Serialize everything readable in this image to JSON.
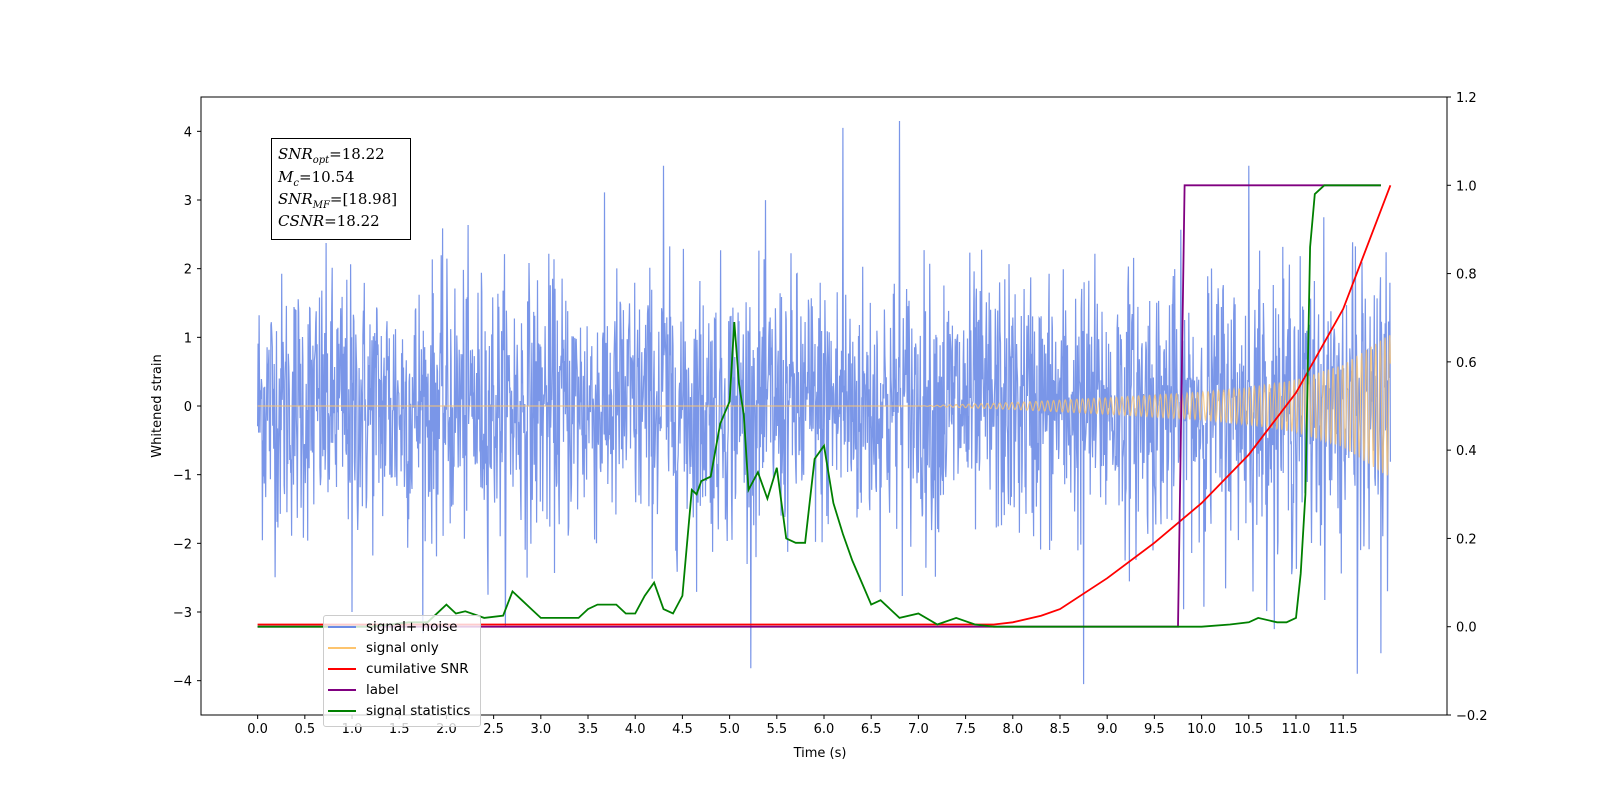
{
  "chart_data": {
    "type": "line",
    "xlabel": "Time (s)",
    "ylabel": "Whitened strain",
    "xlim": [
      -0.6,
      12.6
    ],
    "ylim": [
      -4.5,
      4.5
    ],
    "y2lim": [
      -0.2,
      1.2
    ],
    "x_ticks": [
      0.0,
      0.5,
      1.0,
      1.5,
      2.0,
      2.5,
      3.0,
      3.5,
      4.0,
      4.5,
      5.0,
      5.5,
      6.0,
      6.5,
      7.0,
      7.5,
      8.0,
      8.5,
      9.0,
      9.5,
      10.0,
      10.5,
      11.0,
      11.5
    ],
    "x_tick_labels": [
      "0.0",
      "0.5",
      "1.0",
      "1.5",
      "2.0",
      "2.5",
      "3.0",
      "3.5",
      "4.0",
      "4.5",
      "5.0",
      "5.5",
      "6.0",
      "6.5",
      "7.0",
      "7.5",
      "8.0",
      "8.5",
      "9.0",
      "9.5",
      "10.0",
      "10.5",
      "11.0",
      "11.5"
    ],
    "y_ticks": [
      -4,
      -3,
      -2,
      -1,
      0,
      1,
      2,
      3,
      4
    ],
    "y_tick_labels": [
      "−4",
      "−3",
      "−2",
      "−1",
      "0",
      "1",
      "2",
      "3",
      "4"
    ],
    "y2_ticks": [
      -0.2,
      0.0,
      0.2,
      0.4,
      0.6,
      0.8,
      1.0,
      1.2
    ],
    "y2_tick_labels": [
      "−0.2",
      "0.0",
      "0.2",
      "0.4",
      "0.6",
      "0.8",
      "1.0",
      "1.2"
    ],
    "legend": {
      "location": "lower-left",
      "entries": [
        {
          "label": "signal+ noise",
          "color": "#6b8be6"
        },
        {
          "label": "signal only",
          "color": "#fdc46e"
        },
        {
          "label": "cumilative SNR",
          "color": "#ff0000"
        },
        {
          "label": "label",
          "color": "#800080"
        },
        {
          "label": "signal statistics",
          "color": "#008000"
        }
      ]
    },
    "annotation": {
      "snr_opt": "=18.22",
      "mc": "=10.54",
      "snr_mf": "=[18.98]",
      "csnr": "=18.22"
    },
    "series": [
      {
        "name": "signal+ noise",
        "axis": "left",
        "color": "#6b8be6",
        "style": "dense noisy trace, approx ±1.5 strain band with spikes to ±4",
        "x_range": [
          0.0,
          12.0
        ],
        "notable_peaks": [
          {
            "x": 4.3,
            "y": 3.5
          },
          {
            "x": 6.2,
            "y": 4.05
          },
          {
            "x": 6.8,
            "y": 4.15
          },
          {
            "x": 10.5,
            "y": 3.5
          },
          {
            "x": 8.75,
            "y": -4.05
          },
          {
            "x": 11.65,
            "y": -3.9
          },
          {
            "x": 1.0,
            "y": -3.0
          },
          {
            "x": 11.9,
            "y": -3.6
          }
        ]
      },
      {
        "name": "signal only",
        "axis": "left",
        "color": "#fdc46e",
        "style": "chirp oscillation growing in amplitude",
        "envelope": {
          "x": [
            0.0,
            7.0,
            8.0,
            9.0,
            10.0,
            10.5,
            11.0,
            11.5,
            12.0
          ],
          "amplitude": [
            0.0,
            0.0,
            0.05,
            0.12,
            0.2,
            0.27,
            0.38,
            0.6,
            1.05
          ]
        }
      },
      {
        "name": "cumilative SNR",
        "axis": "right",
        "color": "#ff0000",
        "x": [
          0.0,
          7.5,
          7.8,
          8.0,
          8.3,
          8.5,
          9.0,
          9.5,
          10.0,
          10.5,
          11.0,
          11.5,
          12.0
        ],
        "y": [
          0.005,
          0.005,
          0.005,
          0.01,
          0.025,
          0.04,
          0.11,
          0.19,
          0.28,
          0.39,
          0.53,
          0.72,
          1.0
        ]
      },
      {
        "name": "label",
        "axis": "right",
        "color": "#800080",
        "x": [
          0.0,
          9.75,
          9.82,
          11.9
        ],
        "y": [
          0.0,
          0.0,
          1.0,
          1.0
        ]
      },
      {
        "name": "signal statistics",
        "axis": "right",
        "color": "#008000",
        "x": [
          0.0,
          0.2,
          0.4,
          0.6,
          0.8,
          1.0,
          1.2,
          1.4,
          1.6,
          1.8,
          2.0,
          2.1,
          2.2,
          2.4,
          2.6,
          2.7,
          2.8,
          2.9,
          3.0,
          3.2,
          3.4,
          3.5,
          3.6,
          3.7,
          3.8,
          3.9,
          4.0,
          4.1,
          4.2,
          4.3,
          4.4,
          4.5,
          4.6,
          4.65,
          4.7,
          4.8,
          4.9,
          5.0,
          5.05,
          5.1,
          5.15,
          5.2,
          5.3,
          5.4,
          5.5,
          5.6,
          5.7,
          5.8,
          5.9,
          6.0,
          6.1,
          6.2,
          6.3,
          6.4,
          6.5,
          6.6,
          6.7,
          6.8,
          7.0,
          7.2,
          7.4,
          7.6,
          7.8,
          8.0,
          8.5,
          9.0,
          9.5,
          10.0,
          10.3,
          10.5,
          10.6,
          10.8,
          10.9,
          11.0,
          11.05,
          11.1,
          11.15,
          11.2,
          11.3,
          11.5,
          11.9
        ],
        "y": [
          0.0,
          0.0,
          0.0,
          0.0,
          0.0,
          0.0,
          0.0,
          0.005,
          0.01,
          0.01,
          0.05,
          0.03,
          0.035,
          0.02,
          0.025,
          0.08,
          0.06,
          0.04,
          0.02,
          0.02,
          0.02,
          0.04,
          0.05,
          0.05,
          0.05,
          0.03,
          0.03,
          0.07,
          0.1,
          0.04,
          0.03,
          0.07,
          0.31,
          0.3,
          0.33,
          0.34,
          0.46,
          0.51,
          0.69,
          0.55,
          0.48,
          0.31,
          0.35,
          0.29,
          0.36,
          0.2,
          0.19,
          0.19,
          0.38,
          0.41,
          0.28,
          0.21,
          0.15,
          0.1,
          0.05,
          0.06,
          0.04,
          0.02,
          0.03,
          0.005,
          0.02,
          0.005,
          0.0,
          0.0,
          0.0,
          0.0,
          0.0,
          0.0,
          0.005,
          0.01,
          0.02,
          0.01,
          0.01,
          0.02,
          0.12,
          0.3,
          0.86,
          0.98,
          1.0,
          1.0,
          1.0
        ]
      }
    ]
  }
}
